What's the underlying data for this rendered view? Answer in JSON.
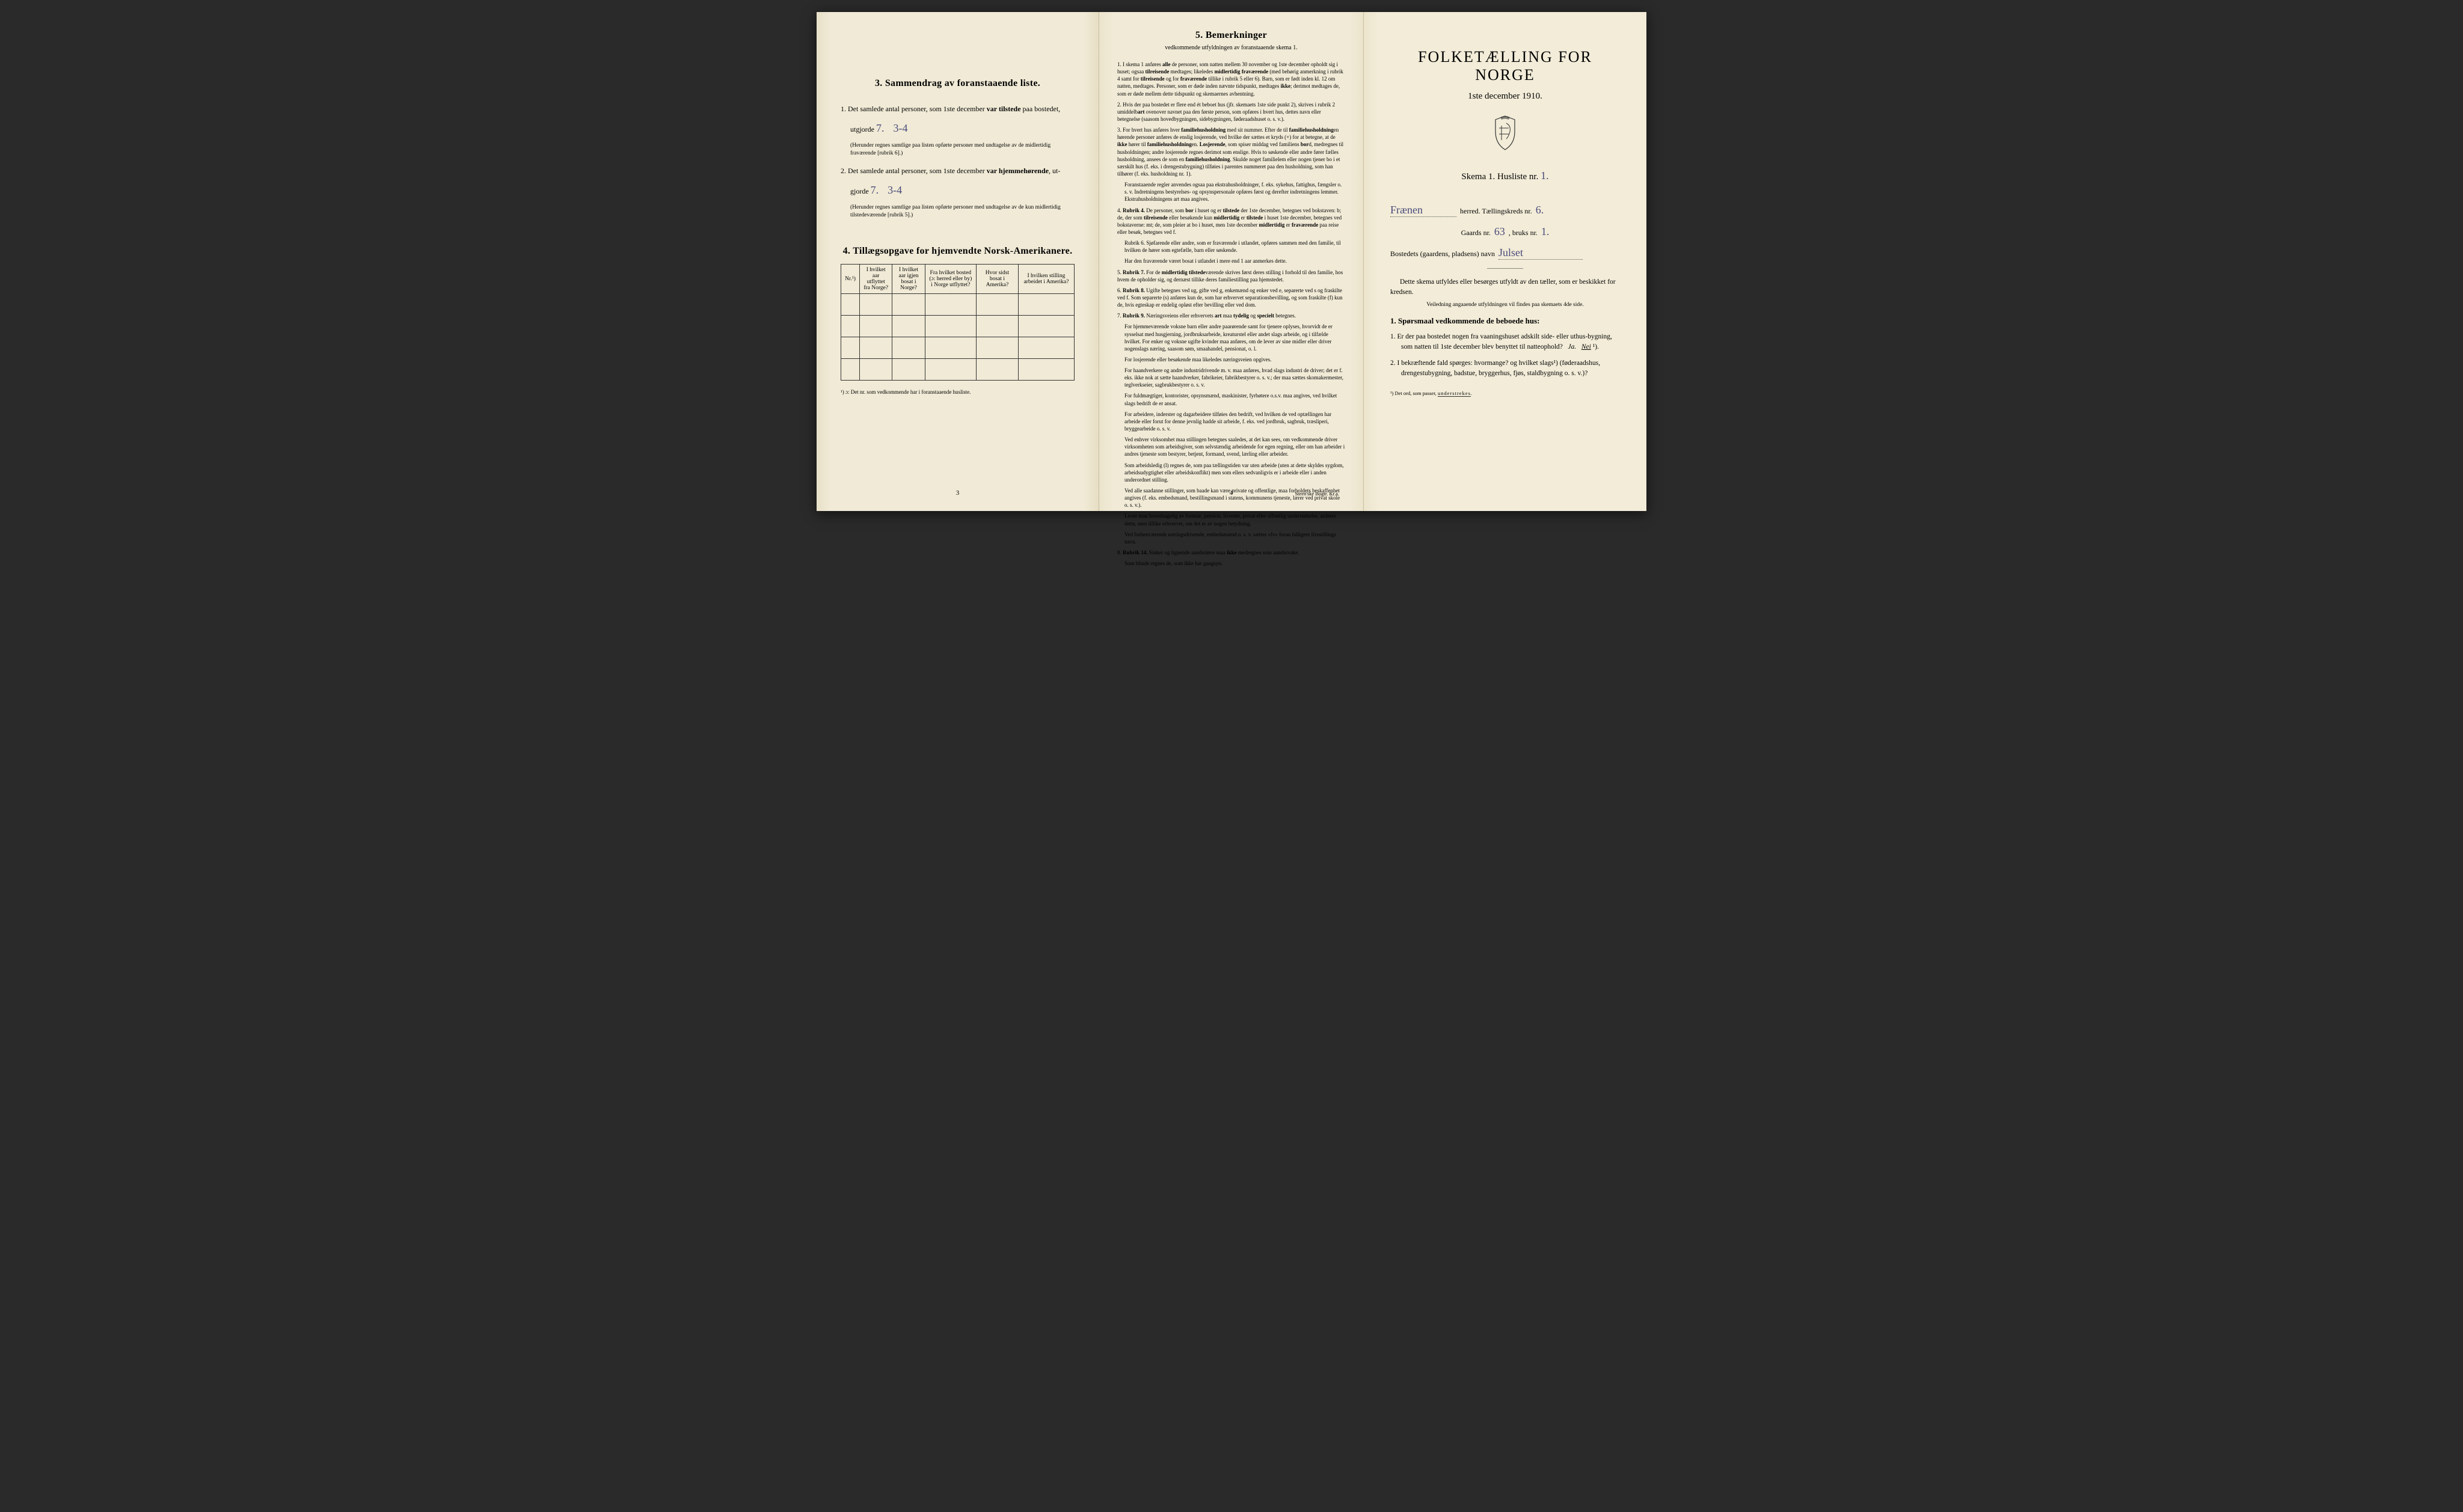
{
  "colors": {
    "paper": "#f0ead6",
    "paper_mid": "#f0ead6",
    "paper_right": "#f2ecd8",
    "ink": "#1a1a1a",
    "handwriting": "#4a4a7a",
    "border": "#333333"
  },
  "page3": {
    "section3_title": "3.  Sammendrag av foranstaaende liste.",
    "item1_pre": "1. Det samlede antal personer, som 1ste december ",
    "item1_bold": "var tilstede",
    "item1_post": " paa bostedet,",
    "item1_line2_pre": "utgjorde ",
    "item1_hand1": "7.",
    "item1_hand2": "3-4",
    "item1_note": "(Herunder regnes samtlige paa listen opførte personer med undtagelse av de midlertidig fraværende [rubrik 6].)",
    "item2_pre": "2. Det samlede antal personer, som 1ste december ",
    "item2_bold": "var hjemmehørende",
    "item2_post": ", ut-",
    "item2_line2_pre": "gjorde ",
    "item2_hand1": "7.",
    "item2_hand2": "3-4",
    "item2_note": "(Herunder regnes samtlige paa listen opførte personer med undtagelse av de kun midlertidig tilstedeværende [rubrik 5].)",
    "section4_title": "4.  Tillægsopgave for hjemvendte Norsk-Amerikanere.",
    "table": {
      "headers": [
        "Nr.¹)",
        "I hvilket aar utflyttet fra Norge?",
        "I hvilket aar igjen bosat i Norge?",
        "Fra hvilket bosted (ɔ: herred eller by) i Norge utflyttet?",
        "Hvor sidst bosat i Amerika?",
        "I hvilken stilling arbeidet i Amerika?"
      ],
      "rows": 4
    },
    "footnote": "¹) ɔ: Det nr. som vedkommende har i foranstaaende husliste.",
    "page_num": "3"
  },
  "page4": {
    "title": "5.  Bemerkninger",
    "subtitle": "vedkommende utfyldningen av foranstaaende skema 1.",
    "items": [
      {
        "n": "1.",
        "text": "I skema 1 anføres alle de personer, som natten mellem 30 november og 1ste december opholdt sig i huset; ogsaa tilreisende medtages; likeledes midlertidig fraværende (med behørig anmerkning i rubrik 4 samt for tilreisende og for fraværende tillike i rubrik 5 eller 6). Barn, som er født inden kl. 12 om natten, medtages. Personer, som er døde inden nævnte tidspunkt, medtages ikke; derimot medtages de, som er døde mellem dette tidspunkt og skemaernes avhentning."
      },
      {
        "n": "2.",
        "text": "Hvis der paa bostedet er flere end ét beboet hus (jfr. skemaets 1ste side punkt 2), skrives i rubrik 2 umiddelbart ovenover navnet paa den første person, som opføres i hvert hus, dettes navn eller betegnelse (saasom hovedbygningen, sidebygningen, føderaadshuset o. s. v.)."
      },
      {
        "n": "3.",
        "text": "For hvert hus anføres hver familiehusholdning med sit nummer. Efter de til familiehusholdningen hørende personer anføres de enslig losjerende, ved hvilke der sættes et kryds (×) for at betegne, at de ikke hører til familiehusholdningen. Losjerende, som spiser middag ved familiens bord, medregnes til husholdningen; andre losjerende regnes derimot som enslige. Hvis to søskende eller andre fører fælles husholdning, ansees de som en familiehusholdning. Skulde noget familielem eller nogen tjener bo i et særskilt hus (f. eks. i drengestubygning) tilføies i parentes nummeret paa den husholdning, som han tilhører (f. eks. husholdning nr. 1).",
        "subs": [
          "Foranstaaende regler anvendes ogsaa paa ekstrahusholdninger, f. eks. sykehus, fattighus, fængsler o. s. v. Indretningens bestyrelses- og opsynspersonale opføres først og derefter indretningens lemmer. Ekstrahusholdningens art maa angives."
        ]
      },
      {
        "n": "4.",
        "text": "Rubrik 4. De personer, som bor i huset og er tilstede der 1ste december, betegnes ved bokstaven: b; de, der som tilreisende eller besøkende kun midlertidig er tilstede i huset 1ste december, betegnes ved bokstaverne: mt; de, som pleier at bo i huset, men 1ste december midlertidig er fraværende paa reise eller besøk, betegnes ved f.",
        "subs": [
          "Rubrik 6. Sjøfarende eller andre, som er fraværende i utlandet, opføres sammen med den familie, til hvilken de hører som egtefælle, barn eller søskende.",
          "Har den fraværende været bosat i utlandet i mere end 1 aar anmerkes dette."
        ]
      },
      {
        "n": "5.",
        "text": "Rubrik 7. For de midlertidig tilstedeværende skrives først deres stilling i forhold til den familie, hos hvem de opholder sig, og dernæst tillike deres familiestilling paa hjemstedet."
      },
      {
        "n": "6.",
        "text": "Rubrik 8. Ugifte betegnes ved ug, gifte ved g, enkemænd og enker ved e, separerte ved s og fraskilte ved f. Som separerte (s) anføres kun de, som har erhvervet separationsbevilling, og som fraskilte (f) kun de, hvis egteskap er endelig opløst efter bevilling eller ved dom."
      },
      {
        "n": "7.",
        "text": "Rubrik 9. Næringsveiens eller erhvervets art maa tydelig og specielt betegnes.",
        "subs": [
          "For hjemmeværende voksne barn eller andre paarørende samt for tjenere oplyses, hvorvidt de er sysselsat med husgjerning, jordbruksarbeide, kreaturstel eller andet slags arbeide, og i tilfælde hvilket. For enker og voksne ugifte kvinder maa anføres, om de lever av sine midler eller driver nogenslags næring, saasom søm, smaahandel, pensionat, o. l.",
          "For losjerende eller besøkende maa likeledes næringsveien opgives.",
          "For haandverkere og andre industridrivende m. v. maa anføres, hvad slags industri de driver; det er f. eks. ikke nok at sætte haandverker, fabrikeier, fabrikbestyrer o. s. v.; der maa sættes skomakermester, teglverkseier, sagbrukbestyrer o. s. v.",
          "For fuldmægtiger, kontorister, opsynsmænd, maskinister, fyrbøtere o.s.v. maa angives, ved hvilket slags bedrift de er ansat.",
          "For arbeidere, inderster og dagarbeidere tilføies den bedrift, ved hvilken de ved optællingen har arbeide eller forut for denne jevnlig hadde sit arbeide, f. eks. ved jordbruk, sagbruk, træsliperi, bryggearbeide o. s. v.",
          "Ved enhver virksomhet maa stillingen betegnes saaledes, at det kan sees, om vedkommende driver virksomheten som arbeidsgiver, som selvstændig arbeidende for egen regning, eller om han arbeider i andres tjeneste som bestyrer, betjent, formand, svend, lærling eller arbeider.",
          "Som arbeidsledig (l) regnes de, som paa tællingstiden var uten arbeide (uten at dette skyldes sygdom, arbeidsudygtighet eller arbeidskonflikt) men som ellers sedvanligvis er i arbeide eller i anden underordnet stilling.",
          "Ved alle saadanne stillinger, som baade kan være private og offentlige, maa forholdets beskaffenhet angives (f. eks. embedsmand, bestillingsmand i statens, kommunens tjeneste, lærer ved privat skole o. s. v.).",
          "Lever man hovedsagelig av formue, pension, livrente, privat eller offentlig understøttelse, anføres dette, men tillike erhvervet, om det er av nogen betydning.",
          "Ved forhenværende næringsdrivende, embedsmænd o. s. v. sættes «fv» foran tidligere livsstillings navn."
        ]
      },
      {
        "n": "8.",
        "text": "Rubrik 14. Sinker og lignende aandssløve maa ikke medregnes som aandssvake.",
        "subs": [
          "Som blinde regnes de, som ikke har gangsyn."
        ]
      }
    ],
    "page_num": "4",
    "printer": "Steen'ske Bogtr. Kr.a."
  },
  "page_right": {
    "main_title": "FOLKETÆLLING FOR NORGE",
    "date": "1ste december 1910.",
    "skema_pre": "Skema 1.  Husliste nr. ",
    "skema_hand": "1.",
    "herred_hand": "Frænen",
    "herred_label": " herred.   Tællingskreds nr. ",
    "kreds_hand": "6.",
    "gaard_pre": "Gaards nr. ",
    "gaard_hand": "63",
    "bruk_pre": ", bruks nr. ",
    "bruk_hand": "1.",
    "bosted_label": "Bostedets (gaardens, pladsens) navn ",
    "bosted_hand": "Julset",
    "instr1": "Dette skema utfyldes eller besørges utfyldt av den tæller, som er beskikket for kredsen.",
    "instr2": "Veiledning angaaende utfyldningen vil findes paa skemaets 4de side.",
    "q_heading": "1. Spørsmaal vedkommende de beboede hus:",
    "q1": "1. Er der paa bostedet nogen fra vaaningshuset adskilt side- eller uthus-bygning, som natten til 1ste december blev benyttet til natteophold?   Ja.   Nei ¹).",
    "q2": "2. I bekræftende fald spørges: hvormange?          og hvilket slags¹) (føderaadshus, drengestubygning, badstue, bryggerhus, fjøs, staldbygning o. s. v.)?",
    "footnote": "¹) Det ord, som passer, understrekes."
  }
}
